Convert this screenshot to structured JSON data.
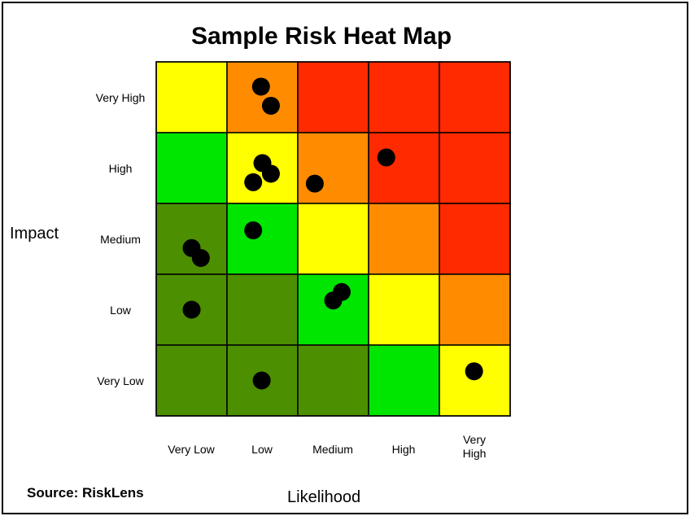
{
  "chart_data": {
    "type": "heatmap",
    "title": "Sample Risk Heat Map",
    "xlabel": "Likelihood",
    "ylabel": "Impact",
    "x_categories": [
      "Very Low",
      "Low",
      "Medium",
      "High",
      "Very High"
    ],
    "y_categories": [
      "Very High",
      "High",
      "Medium",
      "Low",
      "Very Low"
    ],
    "cell_colors": [
      [
        "#ffff00",
        "#ff8c00",
        "#ff2a00",
        "#ff2a00",
        "#ff2a00"
      ],
      [
        "#00e600",
        "#ffff00",
        "#ff8c00",
        "#ff2a00",
        "#ff2a00"
      ],
      [
        "#4c8f00",
        "#00e600",
        "#ffff00",
        "#ff8c00",
        "#ff2a00"
      ],
      [
        "#4c8f00",
        "#4c8f00",
        "#00e600",
        "#ffff00",
        "#ff8c00"
      ],
      [
        "#4c8f00",
        "#4c8f00",
        "#4c8f00",
        "#00e600",
        "#ffff00"
      ]
    ],
    "points": [
      {
        "likelihood": "Low",
        "impact": "Very High",
        "dx": 0.48,
        "dy": 0.35
      },
      {
        "likelihood": "Low",
        "impact": "Very High",
        "dx": 0.62,
        "dy": 0.62
      },
      {
        "likelihood": "Low",
        "impact": "High",
        "dx": 0.5,
        "dy": 0.43
      },
      {
        "likelihood": "Low",
        "impact": "High",
        "dx": 0.62,
        "dy": 0.58
      },
      {
        "likelihood": "Low",
        "impact": "High",
        "dx": 0.37,
        "dy": 0.7
      },
      {
        "likelihood": "Medium",
        "impact": "High",
        "dx": 0.24,
        "dy": 0.72
      },
      {
        "likelihood": "High",
        "impact": "High",
        "dx": 0.25,
        "dy": 0.35
      },
      {
        "likelihood": "Very Low",
        "impact": "Medium",
        "dx": 0.5,
        "dy": 0.63
      },
      {
        "likelihood": "Very Low",
        "impact": "Medium",
        "dx": 0.63,
        "dy": 0.77
      },
      {
        "likelihood": "Low",
        "impact": "Medium",
        "dx": 0.37,
        "dy": 0.38
      },
      {
        "likelihood": "Medium",
        "impact": "Low",
        "dx": 0.62,
        "dy": 0.25
      },
      {
        "likelihood": "Medium",
        "impact": "Low",
        "dx": 0.5,
        "dy": 0.37
      },
      {
        "likelihood": "Very Low",
        "impact": "Low",
        "dx": 0.5,
        "dy": 0.5
      },
      {
        "likelihood": "Low",
        "impact": "Very Low",
        "dx": 0.49,
        "dy": 0.5
      },
      {
        "likelihood": "Very High",
        "impact": "Very Low",
        "dx": 0.49,
        "dy": 0.37
      }
    ],
    "grid": true,
    "legend": "none"
  },
  "source": "Source: RiskLens",
  "point_color": "#000000"
}
